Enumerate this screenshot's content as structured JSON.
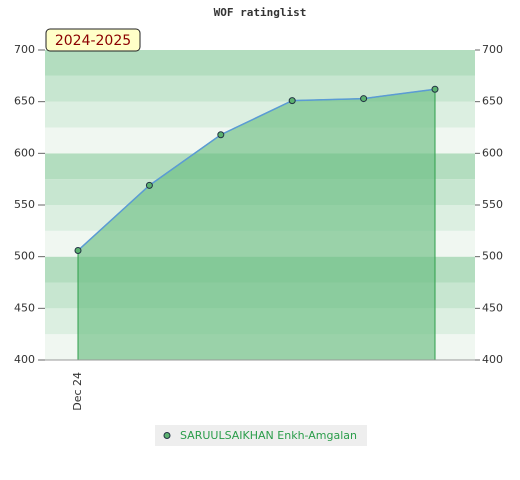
{
  "chart_data": {
    "type": "area",
    "title": "WOF ratinglist",
    "badge": "2024-2025",
    "categories": [
      "Dec 24",
      null,
      null,
      null,
      null,
      null
    ],
    "series": [
      {
        "name": "SARUULSAIKHAN Enkh-Amgalan",
        "color": "#5b9bd5",
        "fill": "#6cbf83",
        "marker": "#5cb270",
        "values": [
          506,
          569,
          618,
          651,
          653,
          662
        ]
      }
    ],
    "ylim": [
      400,
      700
    ],
    "yticks": [
      400,
      450,
      500,
      550,
      600,
      650,
      700
    ],
    "y2lim": [
      400,
      700
    ],
    "y2ticks": [
      400,
      450,
      500,
      550,
      600,
      650,
      700
    ]
  }
}
